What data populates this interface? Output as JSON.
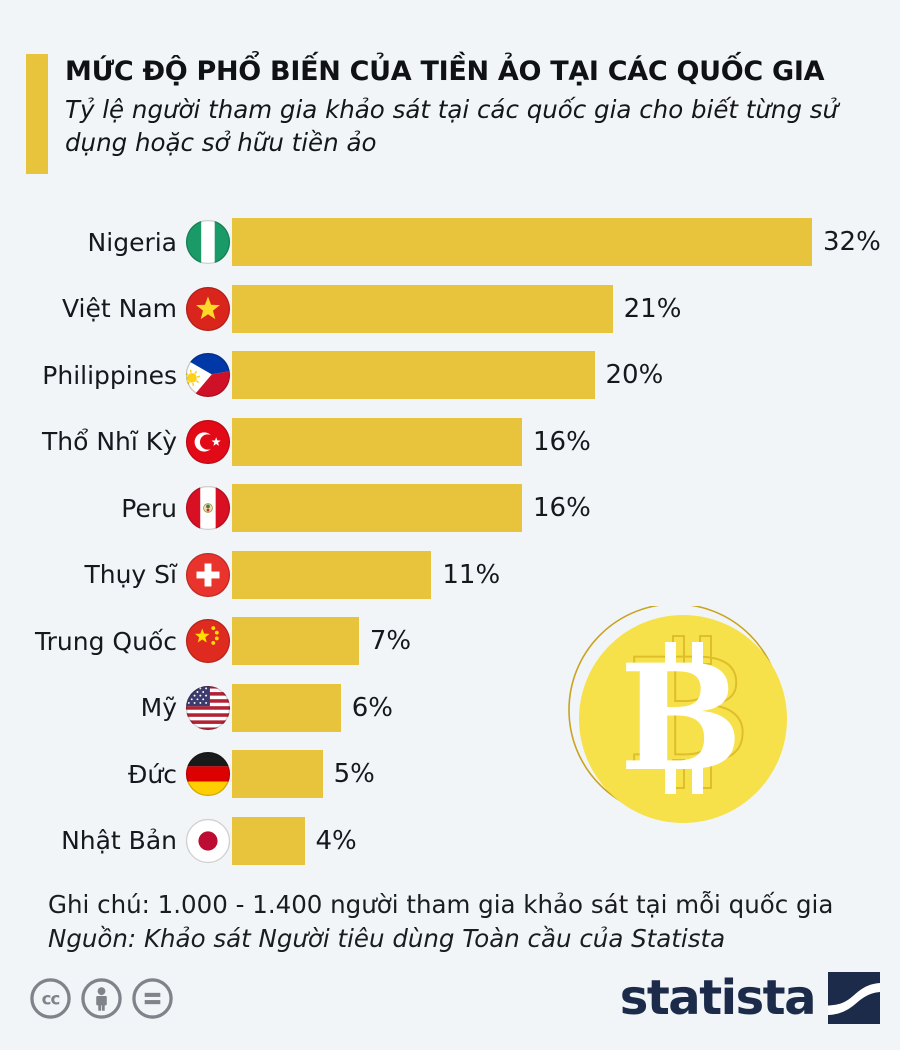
{
  "header": {
    "title": "MỨC ĐỘ PHỔ BIẾN CỦA TIỀN ẢO TẠI CÁC QUỐC GIA",
    "subtitle": "Tỷ lệ người tham gia khảo sát tại các quốc gia cho biết từng sử dụng hoặc sở hữu tiền ảo"
  },
  "chart_data": {
    "type": "bar",
    "orientation": "horizontal",
    "categories": [
      "Nigeria",
      "Việt Nam",
      "Philippines",
      "Thổ Nhĩ Kỳ",
      "Peru",
      "Thụy Sĩ",
      "Trung Quốc",
      "Mỹ",
      "Đức",
      "Nhật Bản"
    ],
    "values": [
      32,
      21,
      20,
      16,
      16,
      11,
      7,
      6,
      5,
      4
    ],
    "value_labels": [
      "32%",
      "21%",
      "20%",
      "16%",
      "16%",
      "11%",
      "7%",
      "6%",
      "5%",
      "4%"
    ],
    "flags": [
      "nigeria",
      "vietnam",
      "philippines",
      "turkey",
      "peru",
      "switzerland",
      "china",
      "usa",
      "germany",
      "japan"
    ],
    "xlim": [
      0,
      32
    ],
    "grid": false,
    "legend": false,
    "bar_color": "#e8c33c"
  },
  "decor": {
    "coin_icon": "bitcoin-coin",
    "coin_fill": "#f7e14b",
    "coin_outline": "#c8a41f"
  },
  "footer": {
    "note": "Ghi chú: 1.000 - 1.400 người tham gia khảo sát tại mỗi quốc gia",
    "source": "Nguồn: Khảo sát Người tiêu dùng Toàn cầu của Statista",
    "license_icons": [
      "cc",
      "by",
      "nd"
    ],
    "brand": "statista"
  },
  "colors": {
    "background": "#f2f5f8",
    "accent_yellow": "#e8c33c",
    "brand_navy": "#1b2b49",
    "license_gray": "#7f848a"
  }
}
